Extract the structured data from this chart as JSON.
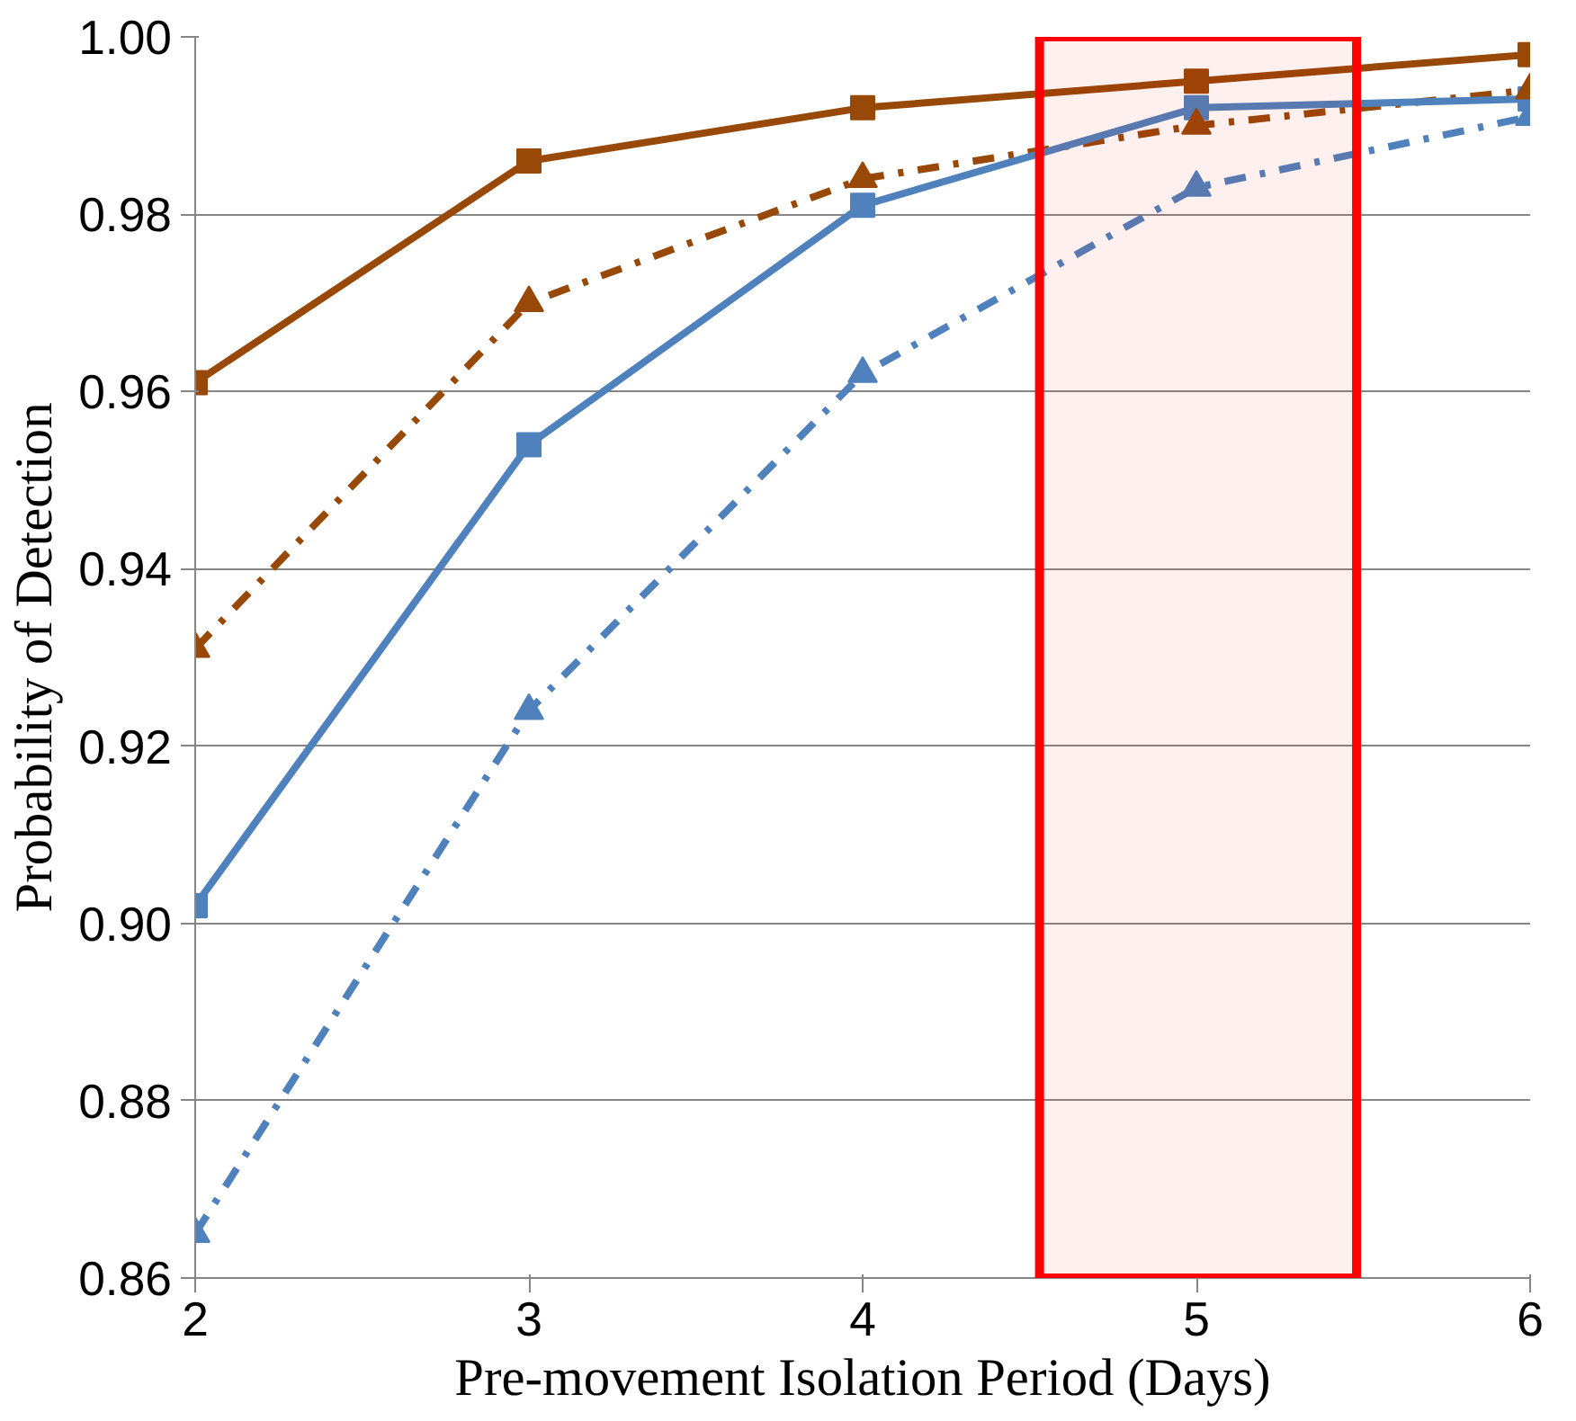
{
  "chart_data": {
    "type": "line",
    "xlabel": "Pre-movement Isolation Period (Days)",
    "ylabel": "Probability of Detection",
    "x": [
      2,
      3,
      4,
      5,
      6
    ],
    "series": [
      {
        "color": "#984807",
        "marker": "square",
        "line_style": "solid",
        "values": [
          0.961,
          0.986,
          0.992,
          0.995,
          0.998
        ]
      },
      {
        "color": "#984807",
        "marker": "triangle",
        "line_style": "dashdot",
        "values": [
          0.931,
          0.97,
          0.984,
          0.99,
          0.994
        ]
      },
      {
        "color": "#4f81bd",
        "marker": "square",
        "line_style": "solid",
        "values": [
          0.902,
          0.954,
          0.981,
          0.992,
          0.993
        ]
      },
      {
        "color": "#4f81bd",
        "marker": "triangle",
        "line_style": "dashdot",
        "values": [
          0.865,
          0.924,
          0.962,
          0.983,
          0.991
        ]
      }
    ],
    "xlim": [
      2,
      6
    ],
    "xticks": [
      2,
      3,
      4,
      5,
      6
    ],
    "ylim": [
      0.86,
      1.0
    ],
    "yticks": [
      {
        "value": 0.86,
        "label": "0.86"
      },
      {
        "value": 0.88,
        "label": "0.88"
      },
      {
        "value": 0.9,
        "label": "0.90"
      },
      {
        "value": 0.92,
        "label": "0.92"
      },
      {
        "value": 0.94,
        "label": "0.94"
      },
      {
        "value": 0.96,
        "label": "0.96"
      },
      {
        "value": 0.98,
        "label": "0.98"
      },
      {
        "value": 1.0,
        "label": "1.00"
      }
    ],
    "grid": "y",
    "bands": [
      {
        "axis": "x",
        "from": 4.53,
        "to": 5.48,
        "color": "#ff0000"
      }
    ]
  }
}
